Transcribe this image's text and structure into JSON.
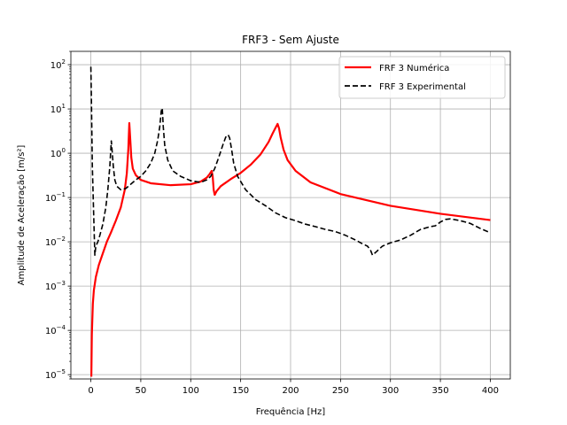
{
  "chart_data": {
    "type": "line",
    "title": "FRF3 - Sem Ajuste",
    "xlabel": "Frequência [Hz]",
    "ylabel": "Amplitude de Aceleração [m/s²]",
    "xlim": [
      -20,
      420
    ],
    "ylim": [
      8e-06,
      200
    ],
    "yscale": "log",
    "grid": true,
    "legend_position": "top-right",
    "x_ticks": [
      0,
      50,
      100,
      150,
      200,
      250,
      300,
      350,
      400
    ],
    "x_tick_labels": [
      "0",
      "50",
      "100",
      "150",
      "200",
      "250",
      "300",
      "350",
      "400"
    ],
    "y_ticks": [
      1e-05,
      0.0001,
      0.001,
      0.01,
      0.1,
      1,
      10,
      100
    ],
    "y_tick_bases": [
      "10",
      "10",
      "10",
      "10",
      "10",
      "10",
      "10",
      "10"
    ],
    "y_tick_exponents": [
      "−5",
      "−4",
      "−3",
      "−2",
      "−1",
      "0",
      "1",
      "2"
    ],
    "series": [
      {
        "name": "FRF 3 Numérica",
        "color": "#ff0000",
        "style": "solid",
        "x": [
          0.5,
          1,
          2,
          3,
          5,
          8,
          12,
          16,
          20,
          25,
          30,
          34,
          36,
          37.5,
          38.5,
          39.5,
          40.5,
          42,
          45,
          50,
          60,
          80,
          100,
          110,
          116,
          119,
          121,
          122,
          123,
          124,
          126,
          130,
          140,
          150,
          160,
          170,
          178,
          182,
          185,
          187,
          188.5,
          190,
          193,
          197,
          205,
          220,
          250,
          300,
          350,
          400
        ],
        "y": [
          9e-06,
          8e-05,
          0.0004,
          0.0008,
          0.0016,
          0.003,
          0.0055,
          0.01,
          0.016,
          0.03,
          0.06,
          0.15,
          0.35,
          1.2,
          4.8,
          2.0,
          0.8,
          0.45,
          0.32,
          0.25,
          0.21,
          0.19,
          0.2,
          0.23,
          0.28,
          0.34,
          0.4,
          0.3,
          0.15,
          0.115,
          0.14,
          0.18,
          0.26,
          0.36,
          0.55,
          0.95,
          1.8,
          2.8,
          3.8,
          4.6,
          3.6,
          2.3,
          1.2,
          0.7,
          0.4,
          0.22,
          0.12,
          0.065,
          0.043,
          0.031
        ]
      },
      {
        "name": "FRF 3 Experimental",
        "color": "#000000",
        "style": "dashed",
        "x": [
          0,
          0.5,
          1.5,
          3,
          4,
          5,
          7,
          9,
          12,
          15,
          17,
          19,
          20.5,
          21.5,
          22.5,
          24,
          26,
          30,
          35,
          40,
          45,
          50,
          55,
          60,
          64,
          67,
          69,
          70.5,
          71.5,
          72.5,
          74,
          77,
          82,
          90,
          100,
          110,
          116,
          120,
          124,
          128,
          132,
          135,
          137.5,
          139,
          141,
          143,
          147,
          155,
          165,
          175,
          185,
          195,
          205,
          215,
          225,
          235,
          245,
          255,
          265,
          272,
          277,
          280,
          282,
          286,
          292,
          300,
          310,
          320,
          330,
          340,
          345,
          350,
          355,
          360,
          370,
          380,
          390,
          400
        ],
        "y": [
          90,
          20,
          0.5,
          0.03,
          0.005,
          0.008,
          0.01,
          0.014,
          0.025,
          0.06,
          0.15,
          0.5,
          1.9,
          1.0,
          0.5,
          0.25,
          0.18,
          0.15,
          0.16,
          0.2,
          0.25,
          0.3,
          0.4,
          0.6,
          1.0,
          2.0,
          4.0,
          9.0,
          10.5,
          4.0,
          1.5,
          0.7,
          0.4,
          0.3,
          0.24,
          0.22,
          0.25,
          0.3,
          0.45,
          0.8,
          1.5,
          2.3,
          2.6,
          2.2,
          1.2,
          0.6,
          0.3,
          0.15,
          0.09,
          0.065,
          0.045,
          0.035,
          0.03,
          0.025,
          0.022,
          0.019,
          0.017,
          0.014,
          0.011,
          0.009,
          0.008,
          0.0065,
          0.005,
          0.006,
          0.008,
          0.0095,
          0.011,
          0.014,
          0.019,
          0.022,
          0.023,
          0.028,
          0.032,
          0.033,
          0.03,
          0.026,
          0.02,
          0.016
        ]
      }
    ]
  }
}
